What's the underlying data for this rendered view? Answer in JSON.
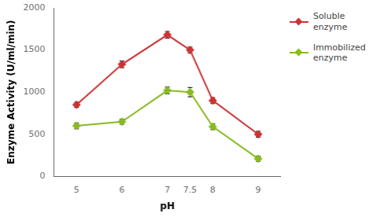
{
  "chart_data": {
    "type": "line",
    "x": [
      5,
      6,
      7,
      7.5,
      8,
      9
    ],
    "series": [
      {
        "name": "Soluble\nenzyme",
        "color": "#cc3333",
        "values": [
          850,
          1330,
          1680,
          1500,
          900,
          500
        ],
        "errors": [
          30,
          40,
          40,
          35,
          35,
          35
        ]
      },
      {
        "name": "Immobilized\nenzyme",
        "color": "#88bb22",
        "values": [
          600,
          650,
          1020,
          1000,
          590,
          210
        ],
        "errors": [
          35,
          30,
          40,
          55,
          35,
          30
        ]
      }
    ],
    "xlabel": "pH",
    "ylabel": "Enzyme Activity (U/ml/min)",
    "xlim": [
      4.5,
      9.5
    ],
    "xticks": [
      5,
      6,
      7,
      7.5,
      8,
      9
    ],
    "ylim": [
      0,
      2000
    ],
    "yticks": [
      0,
      500,
      1000,
      1500,
      2000
    ],
    "grid": false,
    "legend": "right",
    "marker": "diamond"
  }
}
